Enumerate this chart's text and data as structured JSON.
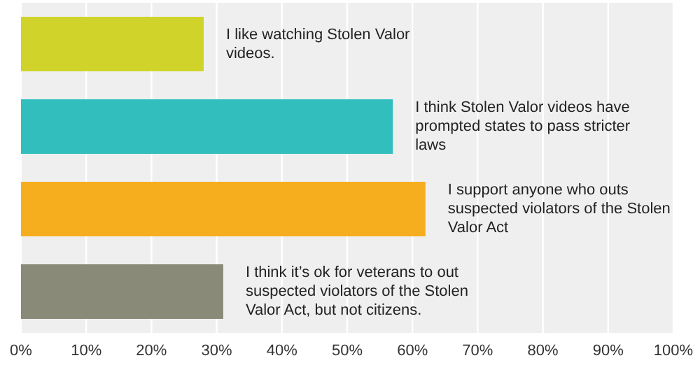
{
  "chart_data": {
    "type": "bar",
    "orientation": "horizontal",
    "categories": [
      "I like watching Stolen Valor videos.",
      "I think Stolen Valor videos have prompted states to pass stricter laws",
      "I support anyone who outs suspected violators of the Stolen Valor Act",
      "I think it’s ok for veterans to out suspected violators of the Stolen Valor Act, but not citizens."
    ],
    "values": [
      28,
      57,
      62,
      31
    ],
    "colors": [
      "#d0d42a",
      "#33bebe",
      "#f6ae1e",
      "#898a78"
    ],
    "xlim": [
      0,
      100
    ],
    "xticks": [
      {
        "value": 0,
        "label": "0%"
      },
      {
        "value": 10,
        "label": "10%"
      },
      {
        "value": 20,
        "label": "20%"
      },
      {
        "value": 30,
        "label": "30%"
      },
      {
        "value": 40,
        "label": "40%"
      },
      {
        "value": 50,
        "label": "50%"
      },
      {
        "value": 60,
        "label": "60%"
      },
      {
        "value": 70,
        "label": "70%"
      },
      {
        "value": 80,
        "label": "80%"
      },
      {
        "value": 90,
        "label": "90%"
      },
      {
        "value": 100,
        "label": "100%"
      }
    ],
    "grid": "x",
    "tick_labels": "x"
  }
}
